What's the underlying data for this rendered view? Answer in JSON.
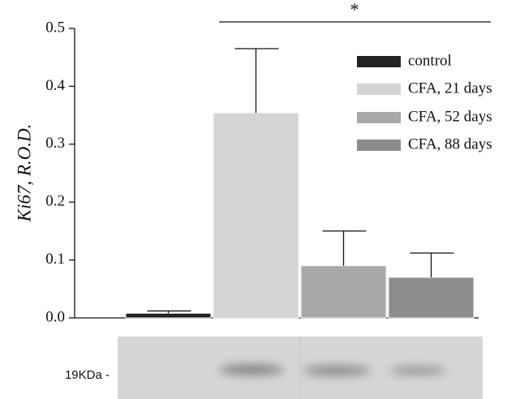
{
  "chart_data": {
    "type": "bar",
    "y_label": "Ki67, R.O.D.",
    "annotation": "*",
    "blot_label": "19KDa -",
    "categories": [
      null
    ],
    "series": [
      {
        "name": "control",
        "color": "#222222",
        "values": [
          0.008
        ],
        "errors": [
          0.004
        ]
      },
      {
        "name": "CFA, 21 days",
        "color": "#d4d4d4",
        "values": [
          0.354
        ],
        "errors": [
          0.111
        ]
      },
      {
        "name": "CFA, 52 days",
        "color": "#a8a8a8",
        "values": [
          0.09
        ],
        "errors": [
          0.06
        ]
      },
      {
        "name": "CFA, 88 days",
        "color": "#8c8c8c",
        "values": [
          0.07
        ],
        "errors": [
          0.042
        ]
      }
    ],
    "ylim": [
      0,
      0.5
    ],
    "yticks": [
      {
        "value": 0,
        "label": "0.0"
      },
      0.1,
      0.2,
      0.3,
      0.4,
      0.5
    ],
    "legend": "upper right"
  }
}
